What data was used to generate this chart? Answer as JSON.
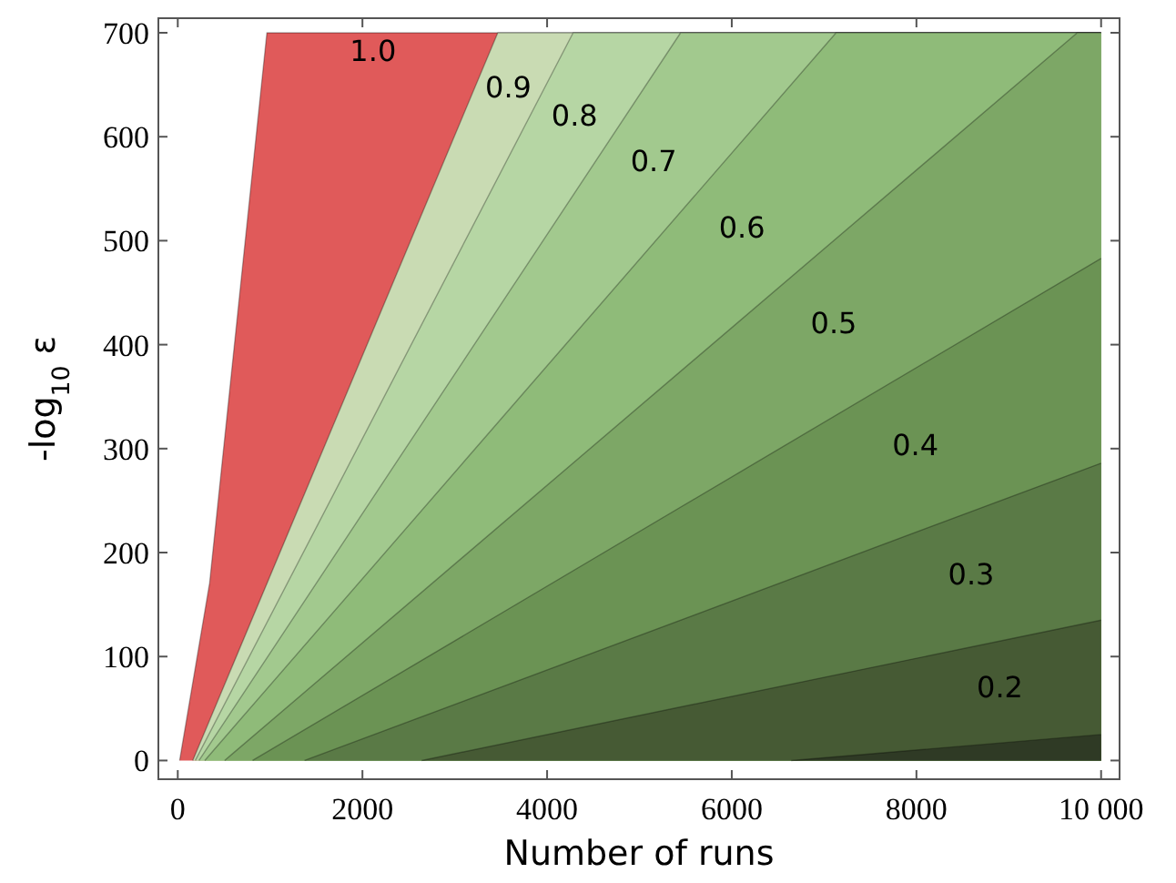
{
  "chart_data": {
    "type": "area",
    "xlabel": "Number of runs",
    "ylabel": "-log$_{10}$ ε",
    "xlim": [
      -210,
      10200
    ],
    "ylim": [
      -18,
      714
    ],
    "xticks": [
      0,
      2000,
      4000,
      6000,
      8000,
      {
        "value": 10000,
        "label": "10 000"
      }
    ],
    "yticks": [
      0,
      100,
      200,
      300,
      400,
      500,
      600,
      700
    ],
    "grid": false,
    "series": [
      {
        "name": "1.0",
        "color": "#e05a5a",
        "x": [
          20,
          345,
          965,
          10000
        ],
        "values": [
          0,
          171,
          700,
          700
        ]
      },
      {
        "name": "0.9",
        "color": "#c9dbb3",
        "x": [
          162,
          3466,
          10000
        ],
        "values": [
          0,
          700,
          700
        ]
      },
      {
        "name": "0.8",
        "color": "#b6d6a4",
        "x": [
          190,
          4282,
          10000
        ],
        "values": [
          0,
          700,
          700
        ]
      },
      {
        "name": "0.7",
        "color": "#a2c98e",
        "x": [
          230,
          5446,
          10000
        ],
        "values": [
          0,
          700,
          700
        ]
      },
      {
        "name": "0.6",
        "color": "#8fbb79",
        "x": [
          292,
          7130,
          10000
        ],
        "values": [
          0,
          700,
          700
        ]
      },
      {
        "name": "0.5",
        "color": "#7da766",
        "x": [
          507,
          9742,
          10000
        ],
        "values": [
          0,
          700,
          700
        ]
      },
      {
        "name": "0.4",
        "color": "#6b9354",
        "x": [
          810,
          10000
        ],
        "values": [
          0,
          483
        ]
      },
      {
        "name": "0.3",
        "color": "#5a7a46",
        "x": [
          1373,
          10000
        ],
        "values": [
          0,
          286
        ]
      },
      {
        "name": "0.2",
        "color": "#465a34",
        "x": [
          2641,
          10000
        ],
        "values": [
          0,
          135
        ]
      },
      {
        "color": "#2f3a25",
        "x": [
          6643,
          10000
        ],
        "values": [
          0,
          25
        ]
      }
    ]
  }
}
